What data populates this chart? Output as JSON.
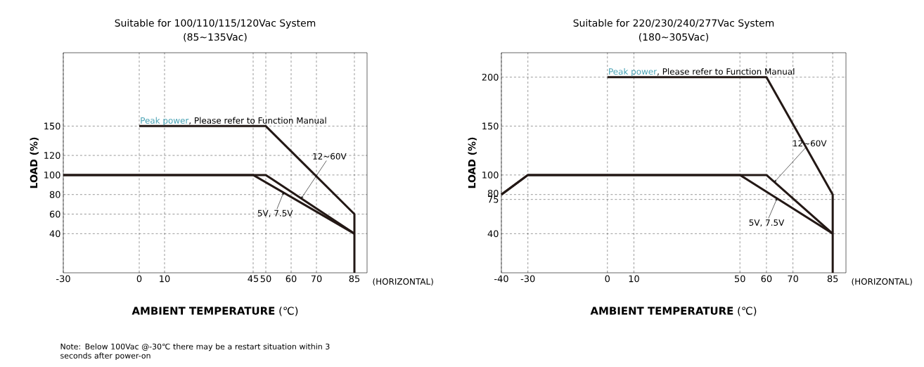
{
  "chart_data": [
    {
      "type": "line",
      "title": "Suitable for 100/110/115/120Vac System",
      "subtitle": "(85~135Vac)",
      "xlabel": "**AMBIENT TEMPERATURE** (℃)",
      "ylabel": "LOAD (%)",
      "annotations": [
        "(HORIZONTAL)",
        ", Please refer to Function Manual",
        "Note: Below 100Vac @-30℃  there may be a restart situation within 3 seconds after power-on"
      ],
      "xlim": [
        -30,
        90
      ],
      "ylim": [
        0,
        225
      ],
      "xticks": [
        -30,
        0,
        10,
        45,
        50,
        60,
        70,
        85
      ],
      "yticks": [
        40,
        60,
        80,
        100,
        120,
        150
      ],
      "grid": true,
      "marker": "none",
      "line_style": "solid",
      "series": [
        {
          "name": "Peak power",
          "color": "#231815",
          "x": [
            0,
            50,
            85,
            85
          ],
          "values": [
            150,
            150,
            60,
            0
          ]
        },
        {
          "name": "12~60V",
          "color": "#231815",
          "x": [
            -30,
            50,
            85
          ],
          "values": [
            100,
            100,
            40
          ]
        },
        {
          "name": "5V, 7.5V",
          "color": "#231815",
          "x": [
            -30,
            45,
            85
          ],
          "values": [
            100,
            100,
            40
          ]
        }
      ]
    },
    {
      "type": "line",
      "title": "Suitable for 220/230/240/277Vac System",
      "subtitle": "(180~305Vac)",
      "xlabel": "**AMBIENT TEMPERATURE** (℃)",
      "ylabel": "LOAD (%)",
      "annotations": [
        "(HORIZONTAL)",
        ", Please refer to Function Manual"
      ],
      "xlim": [
        -40,
        90
      ],
      "ylim": [
        0,
        225
      ],
      "xticks": [
        -40,
        -30,
        0,
        10,
        50,
        60,
        70,
        85
      ],
      "yticks": [
        40,
        75,
        80,
        100,
        150,
        200
      ],
      "grid": true,
      "marker": "none",
      "line_style": "solid",
      "series": [
        {
          "name": "Peak power",
          "color": "#231815",
          "x": [
            0,
            60,
            85,
            85
          ],
          "values": [
            200,
            200,
            80,
            0
          ]
        },
        {
          "name": "12~60V",
          "color": "#231815",
          "x": [
            -40,
            -30,
            60,
            85
          ],
          "values": [
            80,
            100,
            100,
            40
          ]
        },
        {
          "name": "5V, 7.5V",
          "color": "#231815",
          "x": [
            -40,
            -30,
            50,
            85
          ],
          "values": [
            80,
            100,
            100,
            40
          ]
        }
      ]
    }
  ]
}
